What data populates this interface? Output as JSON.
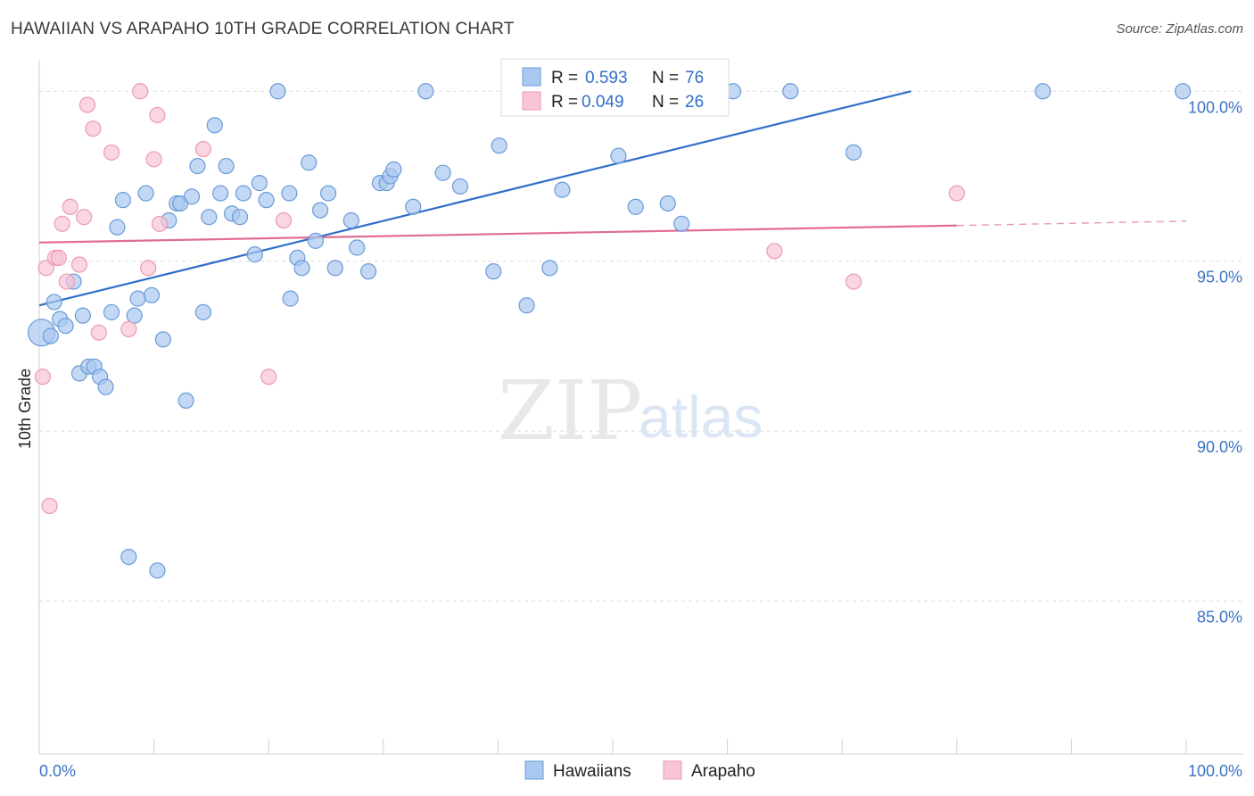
{
  "title": "HAWAIIAN VS ARAPAHO 10TH GRADE CORRELATION CHART",
  "source": "Source: ZipAtlas.com",
  "watermark": {
    "zip": "ZIP",
    "atlas": "atlas"
  },
  "chart_data": {
    "type": "scatter",
    "xlabel": "",
    "ylabel": "10th Grade",
    "xlim": [
      0,
      100
    ],
    "ylim": [
      80.5,
      100.9
    ],
    "x_tick_labels": {
      "left": "0.0%",
      "right": "100.0%"
    },
    "y_ticks": [
      {
        "value": 100,
        "label": "100.0%"
      },
      {
        "value": 95,
        "label": "95.0%"
      },
      {
        "value": 90,
        "label": "90.0%"
      },
      {
        "value": 85,
        "label": "85.0%"
      }
    ],
    "grid": true,
    "legend_position": "top-center",
    "series": [
      {
        "name": "Hawaiians",
        "color": "#a9c8f0",
        "stroke": "#6a9bd8",
        "line_color": "#2f6fc9",
        "r_label": "R =",
        "r_value": "0.593",
        "n_label": "N =",
        "n_value": "76",
        "trend": {
          "x0": 0,
          "y0": 93.7,
          "x1": 76,
          "y1": 100.0
        },
        "points": [
          [
            0.2,
            92.9
          ],
          [
            1.0,
            92.8
          ],
          [
            1.3,
            93.8
          ],
          [
            1.8,
            93.3
          ],
          [
            2.3,
            93.1
          ],
          [
            3.0,
            94.4
          ],
          [
            3.5,
            91.7
          ],
          [
            3.8,
            93.4
          ],
          [
            4.3,
            91.9
          ],
          [
            4.8,
            91.9
          ],
          [
            5.3,
            91.6
          ],
          [
            5.8,
            91.3
          ],
          [
            6.3,
            93.5
          ],
          [
            6.8,
            96.0
          ],
          [
            7.3,
            96.8
          ],
          [
            7.8,
            86.3
          ],
          [
            8.3,
            93.4
          ],
          [
            8.6,
            93.9
          ],
          [
            9.3,
            97.0
          ],
          [
            9.8,
            94.0
          ],
          [
            10.3,
            85.9
          ],
          [
            10.8,
            92.7
          ],
          [
            11.3,
            96.2
          ],
          [
            12.0,
            96.7
          ],
          [
            12.3,
            96.7
          ],
          [
            12.8,
            90.9
          ],
          [
            13.3,
            96.9
          ],
          [
            13.8,
            97.8
          ],
          [
            14.3,
            93.5
          ],
          [
            14.8,
            96.3
          ],
          [
            15.3,
            99.0
          ],
          [
            15.8,
            97.0
          ],
          [
            16.3,
            97.8
          ],
          [
            16.8,
            96.4
          ],
          [
            17.5,
            96.3
          ],
          [
            17.8,
            97.0
          ],
          [
            18.8,
            95.2
          ],
          [
            19.2,
            97.3
          ],
          [
            19.8,
            96.8
          ],
          [
            20.8,
            100.0
          ],
          [
            21.8,
            97.0
          ],
          [
            21.9,
            93.9
          ],
          [
            22.5,
            95.1
          ],
          [
            22.9,
            94.8
          ],
          [
            23.5,
            97.9
          ],
          [
            24.1,
            95.6
          ],
          [
            24.5,
            96.5
          ],
          [
            25.2,
            97.0
          ],
          [
            25.8,
            94.8
          ],
          [
            27.2,
            96.2
          ],
          [
            27.7,
            95.4
          ],
          [
            28.7,
            94.7
          ],
          [
            29.7,
            97.3
          ],
          [
            30.3,
            97.3
          ],
          [
            30.6,
            97.5
          ],
          [
            30.9,
            97.7
          ],
          [
            32.6,
            96.6
          ],
          [
            33.7,
            100.0
          ],
          [
            35.2,
            97.6
          ],
          [
            36.7,
            97.2
          ],
          [
            39.6,
            94.7
          ],
          [
            40.1,
            98.4
          ],
          [
            42.5,
            93.7
          ],
          [
            44.5,
            94.8
          ],
          [
            45.6,
            97.1
          ],
          [
            49.2,
            100.0
          ],
          [
            50.5,
            98.1
          ],
          [
            52.0,
            96.6
          ],
          [
            54.0,
            100.0
          ],
          [
            54.8,
            96.7
          ],
          [
            56.0,
            96.1
          ],
          [
            60.5,
            100.0
          ],
          [
            65.5,
            100.0
          ],
          [
            71.0,
            98.2
          ],
          [
            87.5,
            100.0
          ],
          [
            99.7,
            100.0
          ]
        ]
      },
      {
        "name": "Arapaho",
        "color": "#f7c5d3",
        "stroke": "#ec9ab2",
        "line_color": "#e06d93",
        "r_label": "R =",
        "r_value": "0.049",
        "n_label": "N =",
        "n_value": "26",
        "trend": {
          "x0": 0,
          "y0": 95.55,
          "x1": 80,
          "y1": 96.05,
          "dash_x1": 100,
          "dash_y1": 96.18
        },
        "points": [
          [
            0.3,
            91.6
          ],
          [
            0.6,
            94.8
          ],
          [
            0.9,
            87.8
          ],
          [
            1.4,
            95.1
          ],
          [
            1.7,
            95.1
          ],
          [
            2.0,
            96.1
          ],
          [
            2.4,
            94.4
          ],
          [
            2.7,
            96.6
          ],
          [
            3.5,
            94.9
          ],
          [
            3.9,
            96.3
          ],
          [
            4.2,
            99.6
          ],
          [
            4.7,
            98.9
          ],
          [
            5.2,
            92.9
          ],
          [
            6.3,
            98.2
          ],
          [
            7.8,
            93.0
          ],
          [
            8.8,
            100.0
          ],
          [
            9.5,
            94.8
          ],
          [
            10.0,
            98.0
          ],
          [
            10.3,
            99.3
          ],
          [
            10.5,
            96.1
          ],
          [
            14.3,
            98.3
          ],
          [
            20.0,
            91.6
          ],
          [
            21.3,
            96.2
          ],
          [
            64.1,
            95.3
          ],
          [
            71.0,
            94.4
          ],
          [
            80.0,
            97.0
          ]
        ]
      }
    ]
  }
}
